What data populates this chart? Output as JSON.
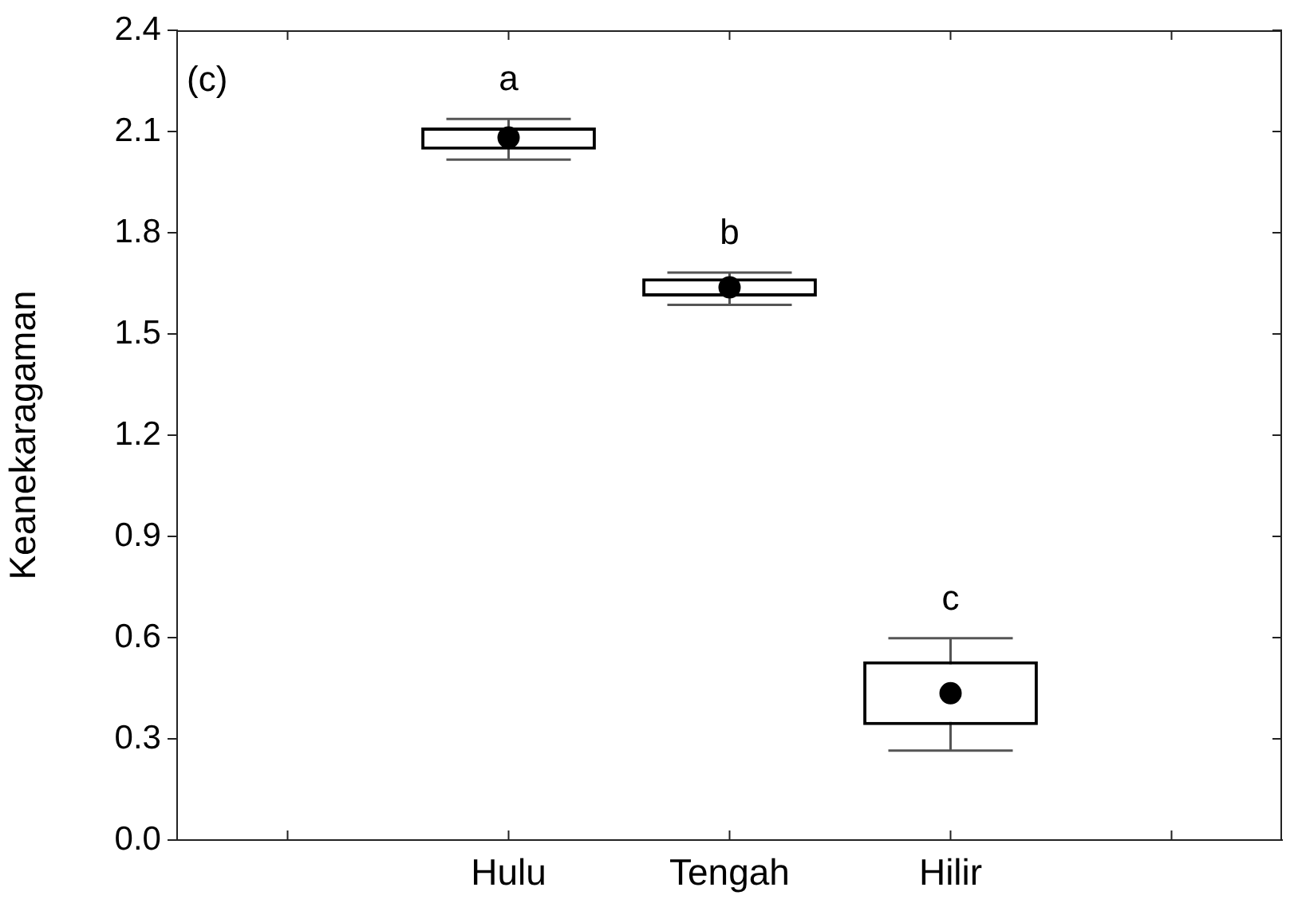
{
  "chart_data": {
    "type": "box",
    "ylabel": "Keanekaragaman",
    "categories": [
      null,
      "Hulu",
      "Tengah",
      "Hilir",
      null
    ],
    "boxes": [
      null,
      {
        "low": 2.017,
        "q1": 2.046,
        "median": 2.082,
        "q3": 2.112,
        "high": 2.137
      },
      {
        "low": 1.586,
        "q1": 1.611,
        "median": 1.638,
        "q3": 1.665,
        "high": 1.682
      },
      {
        "low": 0.265,
        "q1": 0.341,
        "median": 0.435,
        "q3": 0.53,
        "high": 0.598
      },
      null
    ],
    "ylim": [
      0,
      2.4
    ],
    "yticks": [
      {
        "value": 0,
        "label": "0.0"
      },
      0.3,
      0.6,
      0.9,
      1.2,
      1.5,
      1.8,
      2.1,
      {
        "value": 2.4,
        "label": "2.4"
      }
    ],
    "annotations": [
      "(c)",
      "a",
      "b",
      "c"
    ],
    "grid": false,
    "legend": false
  }
}
